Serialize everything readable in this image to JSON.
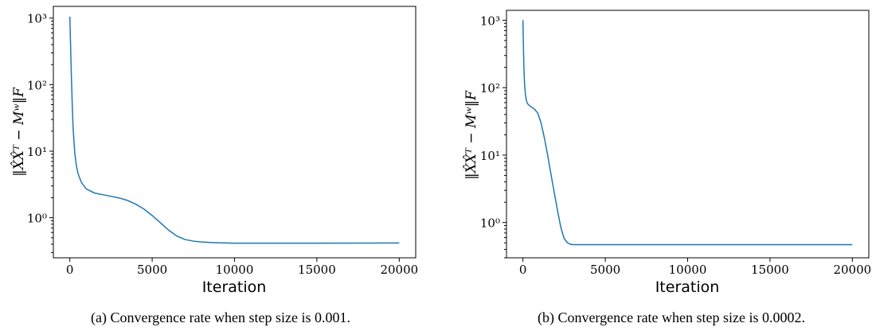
{
  "chart_data": [
    {
      "type": "line",
      "panel": "a",
      "xlabel": "Iteration",
      "ylabel": "‖X̂X̂ᵀ − Mʷ‖F",
      "yscale": "log",
      "xlim": [
        -1000,
        21000
      ],
      "ylim": [
        0.25,
        1500
      ],
      "x_ticks": [
        0,
        5000,
        10000,
        15000,
        20000
      ],
      "x_tick_labels": [
        "0",
        "5000",
        "10000",
        "15000",
        "20000"
      ],
      "y_ticks": [
        1,
        10,
        100,
        1000
      ],
      "y_tick_labels": [
        "10⁰",
        "10¹",
        "10²",
        "10³"
      ],
      "grid": false,
      "caption": "(a) Convergence rate when step size is 0.001.",
      "series": [
        {
          "color": "#1f77b4",
          "x": [
            0,
            50,
            100,
            150,
            200,
            300,
            400,
            500,
            700,
            1000,
            1500,
            2000,
            2500,
            3000,
            3500,
            4000,
            4500,
            5000,
            5500,
            6000,
            6500,
            7000,
            7500,
            8000,
            8500,
            9000,
            9500,
            10000,
            11000,
            12000,
            15000,
            18000,
            20000
          ],
          "y": [
            1050,
            350,
            120,
            48,
            22,
            9.5,
            6.0,
            4.6,
            3.4,
            2.7,
            2.35,
            2.22,
            2.1,
            1.98,
            1.82,
            1.6,
            1.35,
            1.08,
            0.84,
            0.65,
            0.53,
            0.47,
            0.445,
            0.432,
            0.425,
            0.42,
            0.418,
            0.415,
            0.414,
            0.414,
            0.415,
            0.416,
            0.417
          ]
        }
      ]
    },
    {
      "type": "line",
      "panel": "b",
      "xlabel": "Iteration",
      "ylabel": "‖X̂X̂ᵀ − Mʷ‖F",
      "yscale": "log",
      "xlim": [
        -1000,
        21000
      ],
      "ylim": [
        0.3,
        1400
      ],
      "x_ticks": [
        0,
        5000,
        10000,
        15000,
        20000
      ],
      "x_tick_labels": [
        "0",
        "5000",
        "10000",
        "15000",
        "20000"
      ],
      "y_ticks": [
        1,
        10,
        100,
        1000
      ],
      "y_tick_labels": [
        "10⁰",
        "10¹",
        "10²",
        "10³"
      ],
      "grid": false,
      "caption": "(b) Convergence rate when step size is 0.0002.",
      "series": [
        {
          "color": "#1f77b4",
          "x": [
            0,
            30,
            60,
            100,
            150,
            200,
            250,
            300,
            400,
            500,
            700,
            900,
            1100,
            1300,
            1500,
            1700,
            1900,
            2100,
            2300,
            2500,
            2700,
            2900,
            3100,
            3500,
            5000,
            10000,
            15000,
            20000
          ],
          "y": [
            1000,
            400,
            190,
            110,
            80,
            66,
            60,
            57,
            54,
            52,
            48,
            42,
            30,
            18,
            10,
            5.2,
            2.8,
            1.5,
            0.85,
            0.58,
            0.5,
            0.475,
            0.47,
            0.47,
            0.47,
            0.47,
            0.47,
            0.47
          ]
        }
      ]
    }
  ]
}
